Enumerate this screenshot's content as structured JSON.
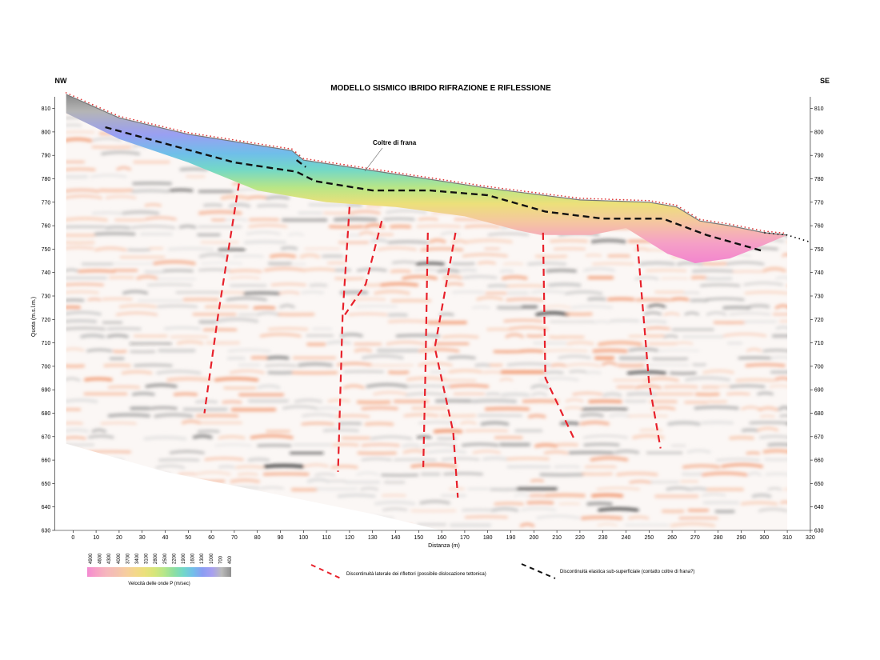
{
  "chart_data": {
    "type": "heatmap",
    "title": "MODELLO SISMICO IBRIDO RIFRAZIONE E RIFLESSIONE",
    "direction_left": "NW",
    "direction_right": "SE",
    "xlabel": "Distanza (m)",
    "ylabel": "Quota (m.s.l.m.)",
    "xlim": [
      -8,
      320
    ],
    "ylim": [
      630,
      815
    ],
    "x_ticks": [
      0,
      10,
      20,
      30,
      40,
      50,
      60,
      70,
      80,
      90,
      100,
      110,
      120,
      130,
      140,
      150,
      160,
      170,
      180,
      190,
      200,
      210,
      220,
      230,
      240,
      250,
      260,
      270,
      280,
      290,
      300,
      310,
      320
    ],
    "y_ticks": [
      630,
      640,
      650,
      660,
      670,
      680,
      690,
      700,
      710,
      720,
      730,
      740,
      750,
      760,
      770,
      780,
      790,
      800,
      810
    ],
    "annotation": "Coltre di frana",
    "topography": [
      {
        "x": -3,
        "y": 816
      },
      {
        "x": 20,
        "y": 806
      },
      {
        "x": 50,
        "y": 799
      },
      {
        "x": 95,
        "y": 792
      },
      {
        "x": 100,
        "y": 788
      },
      {
        "x": 140,
        "y": 782
      },
      {
        "x": 180,
        "y": 776
      },
      {
        "x": 220,
        "y": 771
      },
      {
        "x": 250,
        "y": 770
      },
      {
        "x": 262,
        "y": 768
      },
      {
        "x": 272,
        "y": 762
      },
      {
        "x": 285,
        "y": 760
      },
      {
        "x": 300,
        "y": 757
      },
      {
        "x": 310,
        "y": 756
      }
    ],
    "topography_extension": [
      {
        "x": 300,
        "y": 757
      },
      {
        "x": 310,
        "y": 756
      },
      {
        "x": 320,
        "y": 753
      }
    ],
    "refraction_base": [
      {
        "x": -3,
        "y": 808
      },
      {
        "x": 20,
        "y": 797
      },
      {
        "x": 50,
        "y": 787
      },
      {
        "x": 80,
        "y": 775
      },
      {
        "x": 110,
        "y": 770
      },
      {
        "x": 140,
        "y": 768
      },
      {
        "x": 170,
        "y": 764
      },
      {
        "x": 193,
        "y": 758
      },
      {
        "x": 203,
        "y": 756
      },
      {
        "x": 225,
        "y": 756
      },
      {
        "x": 240,
        "y": 759
      },
      {
        "x": 258,
        "y": 748
      },
      {
        "x": 270,
        "y": 744
      },
      {
        "x": 285,
        "y": 746
      },
      {
        "x": 298,
        "y": 751
      },
      {
        "x": 310,
        "y": 756
      }
    ],
    "section_bottom": [
      {
        "x": -3,
        "y": 667
      },
      {
        "x": 40,
        "y": 655
      },
      {
        "x": 90,
        "y": 645
      },
      {
        "x": 130,
        "y": 637
      },
      {
        "x": 160,
        "y": 630
      }
    ],
    "series": [
      {
        "name": "Discontinuità laterale dei riflettori (possibile dislocazione tettonica)",
        "style": "dashed-red",
        "lines": [
          [
            {
              "x": 72,
              "y": 778
            },
            {
              "x": 63,
              "y": 722
            },
            {
              "x": 57,
              "y": 680
            }
          ],
          [
            {
              "x": 120,
              "y": 768
            },
            {
              "x": 117,
              "y": 722
            },
            {
              "x": 115,
              "y": 655
            }
          ],
          [
            {
              "x": 134,
              "y": 762
            },
            {
              "x": 127,
              "y": 735
            },
            {
              "x": 118,
              "y": 722
            }
          ],
          [
            {
              "x": 154,
              "y": 757
            },
            {
              "x": 153,
              "y": 700
            },
            {
              "x": 152,
              "y": 657
            }
          ],
          [
            {
              "x": 166,
              "y": 757
            },
            {
              "x": 157,
              "y": 708
            },
            {
              "x": 165,
              "y": 672
            },
            {
              "x": 167,
              "y": 644
            }
          ],
          [
            {
              "x": 204,
              "y": 757
            },
            {
              "x": 205,
              "y": 695
            },
            {
              "x": 218,
              "y": 668
            }
          ],
          [
            {
              "x": 245,
              "y": 752
            },
            {
              "x": 250,
              "y": 693
            },
            {
              "x": 255,
              "y": 665
            }
          ]
        ]
      },
      {
        "name": "Discontinuità elastica sub-superficiale (contatto coltre di frana?)",
        "style": "dashed-black",
        "lines": [
          [
            {
              "x": 14,
              "y": 802
            },
            {
              "x": 40,
              "y": 795
            },
            {
              "x": 70,
              "y": 787
            },
            {
              "x": 97,
              "y": 783
            },
            {
              "x": 105,
              "y": 779
            },
            {
              "x": 130,
              "y": 775
            },
            {
              "x": 155,
              "y": 775
            },
            {
              "x": 180,
              "y": 773
            },
            {
              "x": 205,
              "y": 766
            },
            {
              "x": 230,
              "y": 763
            },
            {
              "x": 256,
              "y": 763
            },
            {
              "x": 275,
              "y": 756
            },
            {
              "x": 300,
              "y": 749
            }
          ],
          [
            {
              "x": 97,
              "y": 788
            },
            {
              "x": 101,
              "y": 785
            }
          ]
        ]
      }
    ],
    "colorbar": {
      "label": "Velocità delle onde P (m/sec)",
      "ticks": [
        "4900",
        "4600",
        "4300",
        "4000",
        "3700",
        "3400",
        "3100",
        "2800",
        "2500",
        "2200",
        "1900",
        "1600",
        "1300",
        "1000",
        "700",
        "400"
      ],
      "colors": [
        "#f48ad2",
        "#f7a2c4",
        "#f6b7bd",
        "#f4c1b1",
        "#f6cda0",
        "#f4d78b",
        "#ebe07c",
        "#d6e67a",
        "#b7e78a",
        "#8fdfa0",
        "#72d8c8",
        "#72bfe9",
        "#8a9df3",
        "#a79ff0",
        "#bbbbbb",
        "#8f8f8f"
      ]
    },
    "legend": [
      {
        "text": "Discontinuità laterale dei riflettori (possibile dislocazione tettonica)",
        "style": "dashed-red",
        "color": "#e8202a"
      },
      {
        "text": "Discontinuità elastica sub-superficiale (contatto coltre di frana?)",
        "style": "dashed-black",
        "color": "#111111"
      }
    ]
  }
}
